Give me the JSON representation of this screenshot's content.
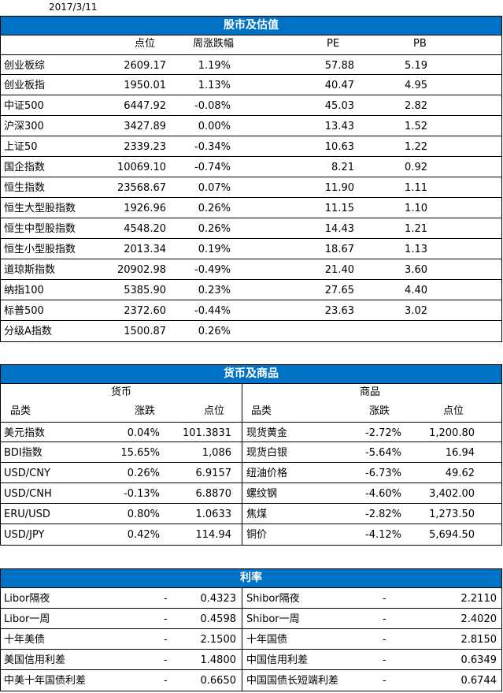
{
  "date": "2017/3/11",
  "stocks": {
    "title": "股市及估值",
    "headers": {
      "point": "点位",
      "weekly": "周涨跌幅",
      "pe": "PE",
      "pb": "PB"
    },
    "rows": [
      {
        "name": "创业板综",
        "point": "2609.17",
        "weekly": "1.19%",
        "pe": "57.88",
        "pb": "5.19"
      },
      {
        "name": "创业板指",
        "point": "1950.01",
        "weekly": "1.13%",
        "pe": "40.47",
        "pb": "4.95"
      },
      {
        "name": "中证500",
        "point": "6447.92",
        "weekly": "-0.08%",
        "pe": "45.03",
        "pb": "2.82"
      },
      {
        "name": "沪深300",
        "point": "3427.89",
        "weekly": "0.00%",
        "pe": "13.43",
        "pb": "1.52"
      },
      {
        "name": "上证50",
        "point": "2339.23",
        "weekly": "-0.34%",
        "pe": "10.63",
        "pb": "1.22"
      },
      {
        "name": "国企指数",
        "point": "10069.10",
        "weekly": "-0.74%",
        "pe": "8.21",
        "pb": "0.92"
      },
      {
        "name": "恒生指数",
        "point": "23568.67",
        "weekly": "0.07%",
        "pe": "11.90",
        "pb": "1.11"
      },
      {
        "name": "恒生大型股指数",
        "point": "1926.96",
        "weekly": "0.26%",
        "pe": "11.15",
        "pb": "1.10"
      },
      {
        "name": "恒生中型股指数",
        "point": "4548.20",
        "weekly": "0.26%",
        "pe": "14.43",
        "pb": "1.21"
      },
      {
        "name": "恒生小型股指数",
        "point": "2013.34",
        "weekly": "0.19%",
        "pe": "18.67",
        "pb": "1.13"
      },
      {
        "name": "道琼斯指数",
        "point": "20902.98",
        "weekly": "-0.49%",
        "pe": "21.40",
        "pb": "3.60"
      },
      {
        "name": "纳指100",
        "point": "5385.90",
        "weekly": "0.23%",
        "pe": "27.65",
        "pb": "4.40"
      },
      {
        "name": "标普500",
        "point": "2372.60",
        "weekly": "-0.44%",
        "pe": "23.63",
        "pb": "3.02"
      },
      {
        "name": "分级A指数",
        "point": "1500.87",
        "weekly": "0.26%",
        "pe": "",
        "pb": ""
      }
    ]
  },
  "fx": {
    "title": "货币及商品",
    "currency_title": "货币",
    "commodity_title": "商品",
    "headers": {
      "category": "品类",
      "change": "涨跌",
      "point": "点位"
    },
    "rows": [
      {
        "cname": "美元指数",
        "cchg": "0.04%",
        "cpt": "101.3831",
        "mname": "现货黄金",
        "mchg": "-2.72%",
        "mpt": "1,200.80"
      },
      {
        "cname": "BDI指数",
        "cchg": "15.65%",
        "cpt": "1,086",
        "mname": "现货白银",
        "mchg": "-5.64%",
        "mpt": "16.94"
      },
      {
        "cname": "USD/CNY",
        "cchg": "0.26%",
        "cpt": "6.9157",
        "mname": "纽油价格",
        "mchg": "-6.73%",
        "mpt": "49.62"
      },
      {
        "cname": "USD/CNH",
        "cchg": "-0.13%",
        "cpt": "6.8870",
        "mname": "螺纹钢",
        "mchg": "-4.60%",
        "mpt": "3,402.00"
      },
      {
        "cname": "ERU/USD",
        "cchg": "0.80%",
        "cpt": "1.0633",
        "mname": "焦煤",
        "mchg": "-2.82%",
        "mpt": "1,273.50"
      },
      {
        "cname": "USD/JPY",
        "cchg": "0.42%",
        "cpt": "114.94",
        "mname": "铜价",
        "mchg": "-4.12%",
        "mpt": "5,694.50"
      }
    ]
  },
  "rates": {
    "title": "利率",
    "rows": [
      {
        "lname": "Libor隔夜",
        "ldash": "-",
        "lval": "0.4323",
        "rname": "Shibor隔夜",
        "rdash": "-",
        "rval": "2.2110"
      },
      {
        "lname": "Libor一周",
        "ldash": "-",
        "lval": "0.4598",
        "rname": "Shibor一周",
        "rdash": "-",
        "rval": "2.4020"
      },
      {
        "lname": "十年美债",
        "ldash": "-",
        "lval": "2.1500",
        "rname": "十年国债",
        "rdash": "-",
        "rval": "2.8150"
      },
      {
        "lname": "美国信用利差",
        "ldash": "-",
        "lval": "1.4800",
        "rname": "中国信用利差",
        "rdash": "-",
        "rval": "0.6349"
      },
      {
        "lname": "中美十年国债利差",
        "ldash": "-",
        "lval": "0.6650",
        "rname": "中国国债长短端利差",
        "rdash": "-",
        "rval": "0.6744"
      }
    ]
  }
}
